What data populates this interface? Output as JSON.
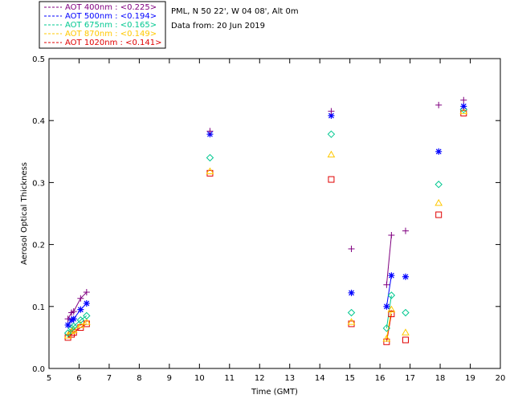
{
  "chart_data": {
    "type": "scatter",
    "title": "",
    "info": [
      "PML, N 50 22', W 04 08', Alt 0m",
      "Data from: 20 Jun 2019"
    ],
    "xlabel": "Time (GMT)",
    "ylabel": "Aerosol Optical Thickness",
    "xlim": [
      5,
      20
    ],
    "ylim": [
      0,
      0.5
    ],
    "xticks": [
      5,
      6,
      7,
      8,
      9,
      10,
      11,
      12,
      13,
      14,
      15,
      16,
      17,
      18,
      19,
      20
    ],
    "yticks": [
      0.0,
      0.1,
      0.2,
      0.3,
      0.4,
      0.5
    ],
    "ytick_labels": [
      "0.0",
      "0.1",
      "0.2",
      "0.3",
      "0.4",
      "0.5"
    ],
    "legend_position": "top-left-outside",
    "series": [
      {
        "name": "AOT  400nm : <0.225>",
        "color": "#800080",
        "marker": "plus",
        "x": [
          5.63,
          5.75,
          5.82,
          6.05,
          6.25,
          10.35,
          14.38,
          15.05,
          16.22,
          16.38,
          16.85,
          17.95,
          18.78
        ],
        "values": [
          0.08,
          0.09,
          0.092,
          0.113,
          0.123,
          0.383,
          0.415,
          0.193,
          0.135,
          0.215,
          0.222,
          0.425,
          0.433
        ],
        "segments": [
          [
            0,
            4
          ],
          [
            8,
            9
          ]
        ]
      },
      {
        "name": "AOT  500nm : <0.194>",
        "color": "#0000ff",
        "marker": "asterisk",
        "x": [
          5.63,
          5.75,
          5.82,
          6.05,
          6.25,
          10.35,
          14.38,
          15.05,
          16.22,
          16.38,
          16.85,
          17.95,
          18.78
        ],
        "values": [
          0.07,
          0.078,
          0.08,
          0.095,
          0.105,
          0.378,
          0.408,
          0.122,
          0.1,
          0.15,
          0.148,
          0.35,
          0.423
        ],
        "segments": [
          [
            0,
            4
          ],
          [
            8,
            9
          ]
        ]
      },
      {
        "name": "AOT  675nm : <0.165>",
        "color": "#00c890",
        "marker": "diamond",
        "x": [
          5.63,
          5.75,
          5.82,
          6.05,
          6.25,
          10.35,
          14.38,
          15.05,
          16.22,
          16.38,
          16.85,
          17.95,
          18.78
        ],
        "values": [
          0.057,
          0.065,
          0.068,
          0.078,
          0.085,
          0.34,
          0.378,
          0.09,
          0.065,
          0.118,
          0.09,
          0.297,
          0.418
        ],
        "segments": [
          [
            0,
            4
          ],
          [
            8,
            9
          ]
        ]
      },
      {
        "name": "AOT  870nm : <0.149>",
        "color": "#ffc800",
        "marker": "triangle",
        "x": [
          5.63,
          5.75,
          5.82,
          6.05,
          6.25,
          10.35,
          14.38,
          15.05,
          16.22,
          16.38,
          16.85,
          17.95,
          18.78
        ],
        "values": [
          0.053,
          0.06,
          0.062,
          0.07,
          0.075,
          0.318,
          0.345,
          0.075,
          0.048,
          0.095,
          0.058,
          0.267,
          0.415
        ],
        "segments": [
          [
            0,
            4
          ],
          [
            8,
            9
          ]
        ]
      },
      {
        "name": "AOT 1020nm : <0.141>",
        "color": "#e00000",
        "marker": "square",
        "x": [
          5.63,
          5.75,
          5.82,
          6.05,
          6.25,
          10.35,
          14.38,
          15.05,
          16.22,
          16.38,
          16.85,
          17.95,
          18.78
        ],
        "values": [
          0.05,
          0.055,
          0.058,
          0.066,
          0.072,
          0.315,
          0.305,
          0.072,
          0.043,
          0.088,
          0.046,
          0.248,
          0.412
        ],
        "segments": [
          [
            0,
            4
          ],
          [
            8,
            9
          ]
        ]
      }
    ]
  }
}
